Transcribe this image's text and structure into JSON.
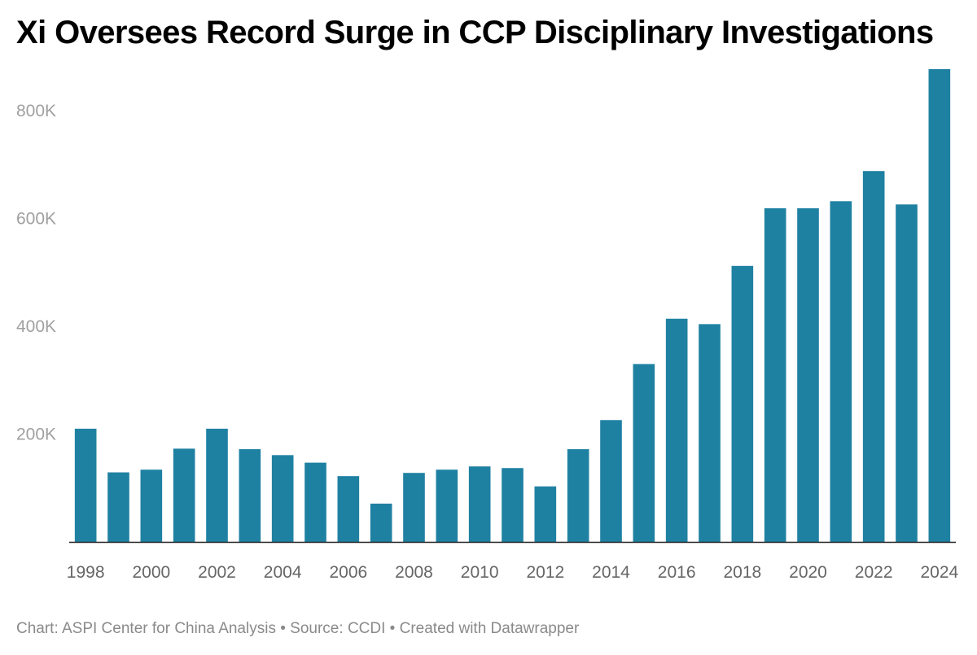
{
  "title": "Xi Oversees Record Surge in CCP Disciplinary Investigations",
  "footer": {
    "chart_label": "Chart:",
    "chart_org": "ASPI Center for China Analysis",
    "separator": "•",
    "source_label": "Source:",
    "source_org": "CCDI",
    "created_with": "Created with Datawrapper"
  },
  "colors": {
    "bar": "#1f81a2",
    "y_tick_text": "#a0a0a0",
    "x_tick_text": "#666666",
    "axis_line": "#222222"
  },
  "chart_data": {
    "type": "bar",
    "title": "Xi Oversees Record Surge in CCP Disciplinary Investigations",
    "xlabel": "",
    "ylabel": "",
    "ylim": [
      0,
      880000
    ],
    "grid": false,
    "legend": "none",
    "categories": [
      "1998",
      "1999",
      "2000",
      "2001",
      "2002",
      "2003",
      "2004",
      "2005",
      "2006",
      "2007",
      "2008",
      "2009",
      "2010",
      "2011",
      "2012",
      "2013",
      "2014",
      "2015",
      "2016",
      "2017",
      "2018",
      "2019",
      "2020",
      "2021",
      "2022",
      "2023",
      "2024"
    ],
    "values": [
      210000,
      129000,
      134000,
      173000,
      210000,
      172000,
      161000,
      147000,
      122000,
      71000,
      128000,
      134000,
      140000,
      137000,
      103000,
      172000,
      226000,
      330000,
      414000,
      404000,
      512000,
      619000,
      619000,
      632000,
      688000,
      626000,
      877000
    ],
    "y_ticks": [
      {
        "value": 200000,
        "label": "200K"
      },
      {
        "value": 400000,
        "label": "400K"
      },
      {
        "value": 600000,
        "label": "600K"
      },
      {
        "value": 800000,
        "label": "800K"
      }
    ],
    "x_tick_labels": [
      "1998",
      "2000",
      "2002",
      "2004",
      "2006",
      "2008",
      "2010",
      "2012",
      "2014",
      "2016",
      "2018",
      "2020",
      "2022",
      "2024"
    ]
  }
}
